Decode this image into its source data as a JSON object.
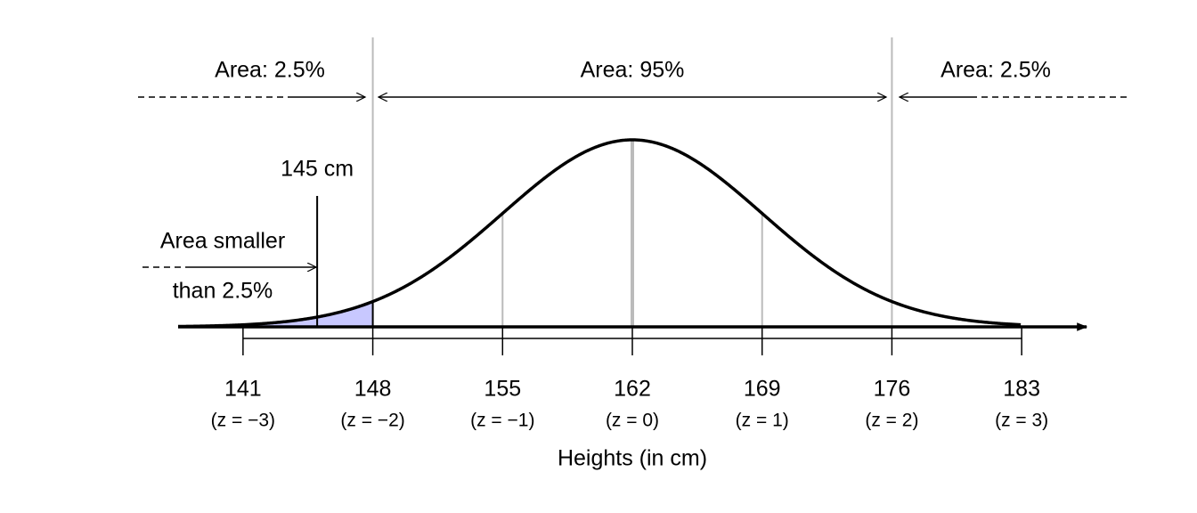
{
  "chart_data": {
    "type": "normal",
    "mean": 162,
    "sd": 7,
    "xlim": [
      137.5,
      186.5
    ],
    "xticks": [
      141,
      148,
      155,
      162,
      169,
      176,
      183
    ],
    "z_labels": [
      "(z = −3)",
      "(z = −2)",
      "(z = −1)",
      "(z = 0)",
      "(z = 1)",
      "(z = 2)",
      "(z = 3)"
    ],
    "x_label": "Heights (in cm)",
    "shade_color": "#c8c8ff",
    "marker": {
      "value": 145,
      "label": "145 cm"
    },
    "annotations": {
      "left_tail": "Area: 2.5%",
      "middle": "Area: 95%",
      "right_tail": "Area: 2.5%",
      "small_1": "Area smaller",
      "small_2": "than 2.5%"
    }
  }
}
